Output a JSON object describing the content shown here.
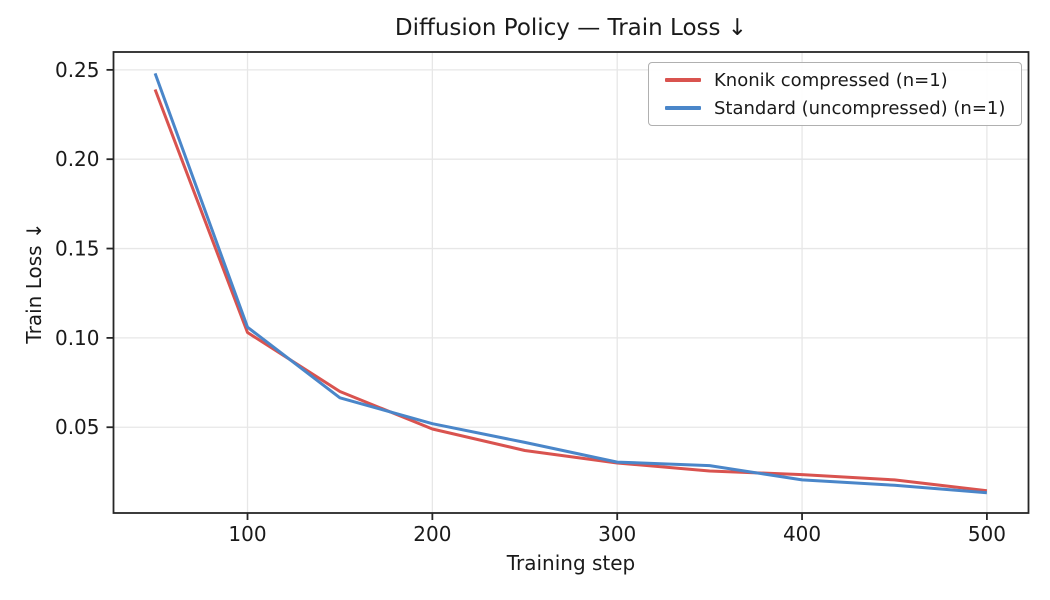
{
  "chart_data": {
    "type": "line",
    "title": "Diffusion Policy — Train Loss ↓",
    "xlabel": "Training step",
    "ylabel": "Train Loss ↓",
    "x": [
      50,
      100,
      150,
      200,
      250,
      300,
      350,
      400,
      450,
      500
    ],
    "series": [
      {
        "name": "Knonik compressed (n=1)",
        "color": "#d9534f",
        "values": [
          0.239,
          0.103,
          0.07,
          0.049,
          0.037,
          0.03,
          0.0255,
          0.0235,
          0.0205,
          0.0145
        ]
      },
      {
        "name": "Standard (uncompressed) (n=1)",
        "color": "#4a86c9",
        "values": [
          0.248,
          0.106,
          0.0665,
          0.052,
          0.0415,
          0.0305,
          0.0285,
          0.0205,
          0.0175,
          0.0133
        ]
      }
    ],
    "xlim": [
      27.5,
      522.5
    ],
    "ylim": [
      0.002,
      0.26
    ],
    "xticks": [
      100,
      200,
      300,
      400,
      500
    ],
    "xtick_labels": [
      "100",
      "200",
      "300",
      "400",
      "500"
    ],
    "yticks": [
      0.05,
      0.1,
      0.15,
      0.2,
      0.25
    ],
    "ytick_labels": [
      "0.05",
      "0.10",
      "0.15",
      "0.20",
      "0.25"
    ],
    "grid": true,
    "legend_position": "upper right"
  },
  "style": {
    "background": "#ffffff",
    "grid_color": "#e7e7e7",
    "spine_color": "#262626",
    "text_color": "#1a1a1a",
    "line_width": 3
  }
}
